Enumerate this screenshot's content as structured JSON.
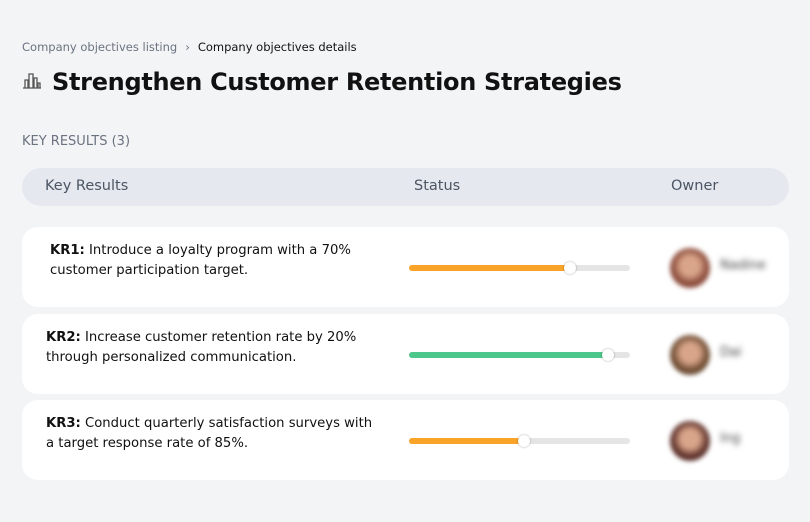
{
  "breadcrumb": {
    "parent": "Company objectives listing",
    "separator": "›",
    "current": "Company objectives details"
  },
  "page": {
    "title": "Strengthen Customer Retention Strategies",
    "icon": "building-icon"
  },
  "section_label": "KEY RESULTS (3)",
  "table": {
    "headers": [
      "Key Results",
      "Status",
      "Owner"
    ],
    "rows": [
      {
        "id": "KR1:",
        "text": "Introduce a loyalty program with a 70% customer participation target.",
        "progress": 73,
        "color": "#f9a429",
        "owner": "Nadine",
        "avatar": "#8a4a3a"
      },
      {
        "id": "KR2:",
        "text": "Increase customer retention rate by 20% through personalized communication.",
        "progress": 90,
        "color": "#4dc78b",
        "owner": "Dai",
        "avatar": "#6b4a30"
      },
      {
        "id": "KR3:",
        "text": "Conduct quarterly satisfaction surveys with a target response rate of 85%.",
        "progress": 52,
        "color": "#f9a429",
        "owner": "Ing",
        "avatar": "#5a2e28"
      }
    ]
  }
}
